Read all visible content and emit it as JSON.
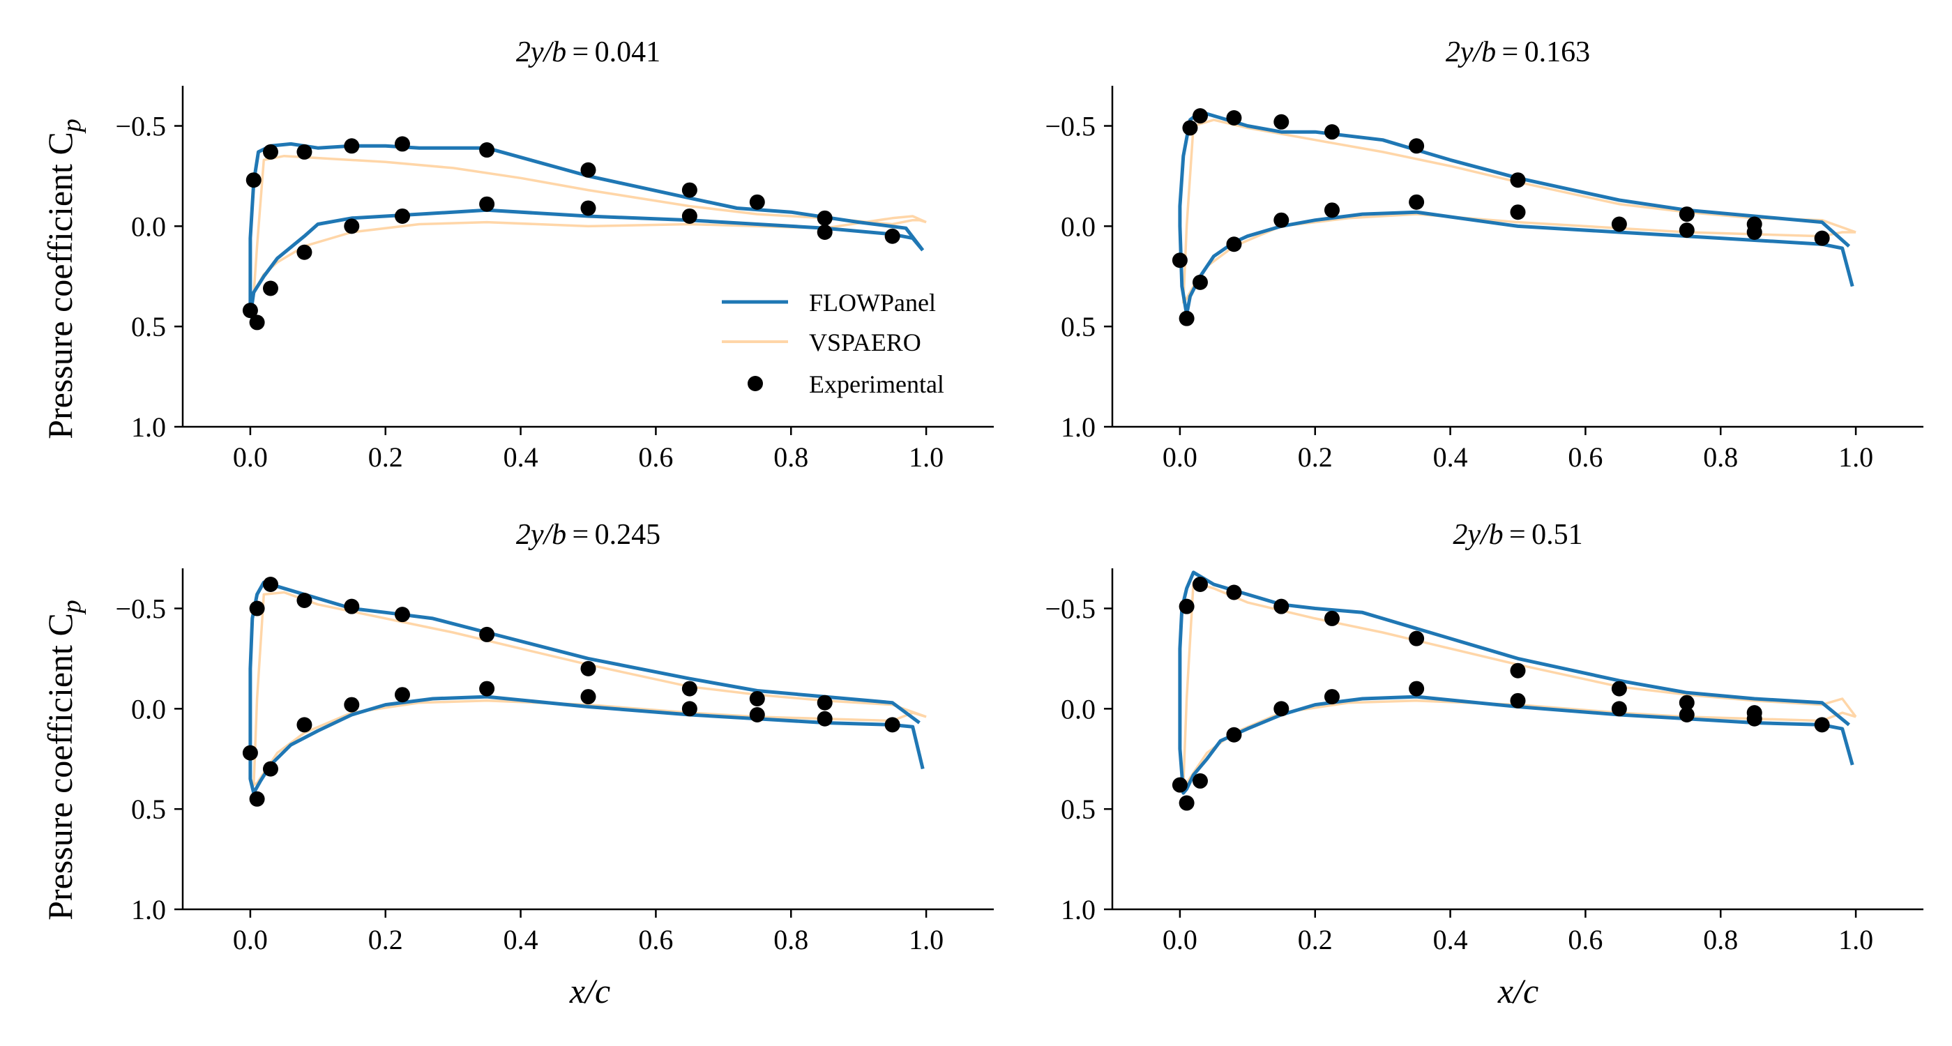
{
  "figure": {
    "ylabel": "Pressure coefficient C",
    "ylabel_sub": "p",
    "xlabel": "x/c"
  },
  "legend": {
    "items": [
      {
        "label": "FLOWPanel",
        "kind": "line",
        "color": "#1f77b4"
      },
      {
        "label": "VSPAERO",
        "kind": "line",
        "color": "#ffd6a8"
      },
      {
        "label": "Experimental",
        "kind": "marker",
        "color": "#000000"
      }
    ],
    "placement": "lower-right of top-left panel"
  },
  "colors": {
    "flowpanel": "#1f77b4",
    "vspaero": "#ffd6a8",
    "experimental": "#000000",
    "axes": "#000000"
  },
  "chart_data": [
    {
      "type": "line",
      "title_prefix": "2y/b",
      "title_value": "0.041",
      "xlabel": "",
      "ylabel": "Pressure coefficient Cp",
      "xlim": [
        -0.1,
        1.1
      ],
      "ylim": [
        1.0,
        -0.7
      ],
      "y_inverted": true,
      "xticks": [
        "0.0",
        "0.2",
        "0.4",
        "0.6",
        "0.8",
        "1.0"
      ],
      "yticks": [
        "−0.5",
        "0.0",
        "0.5",
        "1.0"
      ],
      "series": [
        {
          "name": "FLOWPanel",
          "x": [
            0.995,
            0.98,
            0.95,
            0.85,
            0.75,
            0.65,
            0.5,
            0.35,
            0.25,
            0.15,
            0.1,
            0.08,
            0.04,
            0.02,
            0.005,
            0.0,
            0.0,
            0.005,
            0.012,
            0.03,
            0.06,
            0.1,
            0.15,
            0.2,
            0.25,
            0.35,
            0.5,
            0.65,
            0.72,
            0.8,
            0.9,
            0.97,
            0.995
          ],
          "y": [
            0.12,
            0.06,
            0.04,
            0.01,
            -0.01,
            -0.03,
            -0.05,
            -0.08,
            -0.06,
            -0.04,
            -0.01,
            0.05,
            0.16,
            0.25,
            0.33,
            0.45,
            0.06,
            -0.22,
            -0.37,
            -0.4,
            -0.41,
            -0.39,
            -0.4,
            -0.4,
            -0.39,
            -0.39,
            -0.25,
            -0.14,
            -0.09,
            -0.07,
            -0.02,
            0.01,
            0.12
          ]
        },
        {
          "name": "VSPAERO",
          "x": [
            1.0,
            0.98,
            0.95,
            0.85,
            0.75,
            0.65,
            0.5,
            0.35,
            0.25,
            0.15,
            0.08,
            0.04,
            0.02,
            0.01,
            0.005,
            0.01,
            0.02,
            0.05,
            0.1,
            0.2,
            0.3,
            0.4,
            0.5,
            0.65,
            0.75,
            0.85,
            0.95,
            0.98,
            0.99,
            1.0
          ],
          "y": [
            -0.02,
            -0.05,
            -0.04,
            0.01,
            0.0,
            -0.01,
            0.0,
            -0.02,
            -0.01,
            0.03,
            0.1,
            0.18,
            0.24,
            0.3,
            0.34,
            0.1,
            -0.33,
            -0.35,
            -0.34,
            -0.32,
            -0.29,
            -0.24,
            -0.18,
            -0.1,
            -0.06,
            -0.04,
            -0.01,
            -0.03,
            -0.03,
            -0.02
          ]
        },
        {
          "name": "Experimental",
          "x": [
            0.0,
            0.01,
            0.03,
            0.08,
            0.15,
            0.225,
            0.35,
            0.5,
            0.65,
            0.75,
            0.85,
            0.95,
            0.005,
            0.03,
            0.08,
            0.15,
            0.225,
            0.35,
            0.5,
            0.65,
            0.85
          ],
          "y": [
            0.42,
            0.48,
            0.31,
            0.13,
            0.0,
            -0.05,
            -0.11,
            -0.09,
            -0.05,
            -0.12,
            0.03,
            0.05,
            -0.23,
            -0.37,
            -0.37,
            -0.4,
            -0.41,
            -0.38,
            -0.28,
            -0.18,
            -0.04
          ]
        }
      ]
    },
    {
      "type": "line",
      "title_prefix": "2y/b",
      "title_value": "0.163",
      "xlabel": "",
      "ylabel": "",
      "xlim": [
        -0.1,
        1.1
      ],
      "ylim": [
        1.0,
        -0.7
      ],
      "y_inverted": true,
      "xticks": [
        "0.0",
        "0.2",
        "0.4",
        "0.6",
        "0.8",
        "1.0"
      ],
      "yticks": [
        "−0.5",
        "0.0",
        "0.5",
        "1.0"
      ],
      "series": [
        {
          "name": "FLOWPanel",
          "x": [
            0.995,
            0.98,
            0.95,
            0.85,
            0.75,
            0.65,
            0.5,
            0.35,
            0.27,
            0.2,
            0.15,
            0.1,
            0.08,
            0.05,
            0.03,
            0.015,
            0.01,
            0.003,
            0.0,
            0.0,
            0.005,
            0.015,
            0.03,
            0.06,
            0.1,
            0.15,
            0.2,
            0.3,
            0.4,
            0.5,
            0.65,
            0.75,
            0.85,
            0.95,
            0.99
          ],
          "y": [
            0.3,
            0.11,
            0.09,
            0.07,
            0.05,
            0.03,
            0.0,
            -0.07,
            -0.06,
            -0.03,
            0.0,
            0.05,
            0.08,
            0.15,
            0.25,
            0.35,
            0.44,
            0.3,
            0.0,
            -0.1,
            -0.35,
            -0.53,
            -0.57,
            -0.54,
            -0.5,
            -0.47,
            -0.47,
            -0.43,
            -0.33,
            -0.24,
            -0.13,
            -0.08,
            -0.05,
            -0.02,
            0.1
          ]
        },
        {
          "name": "VSPAERO",
          "x": [
            1.0,
            0.98,
            0.95,
            0.85,
            0.75,
            0.65,
            0.5,
            0.35,
            0.25,
            0.15,
            0.08,
            0.04,
            0.02,
            0.01,
            0.005,
            0.01,
            0.02,
            0.05,
            0.1,
            0.2,
            0.3,
            0.4,
            0.5,
            0.65,
            0.75,
            0.85,
            0.95,
            1.0
          ],
          "y": [
            0.03,
            0.03,
            0.05,
            0.04,
            0.03,
            0.01,
            -0.02,
            -0.06,
            -0.04,
            0.0,
            0.1,
            0.2,
            0.3,
            0.36,
            0.38,
            0.0,
            -0.5,
            -0.53,
            -0.49,
            -0.43,
            -0.37,
            -0.3,
            -0.22,
            -0.11,
            -0.07,
            -0.04,
            -0.03,
            0.03
          ]
        },
        {
          "name": "Experimental",
          "x": [
            0.0,
            0.01,
            0.03,
            0.08,
            0.15,
            0.225,
            0.35,
            0.5,
            0.65,
            0.75,
            0.85,
            0.95,
            0.015,
            0.03,
            0.08,
            0.15,
            0.225,
            0.35,
            0.5,
            0.75,
            0.85
          ],
          "y": [
            0.17,
            0.46,
            0.28,
            0.09,
            -0.03,
            -0.08,
            -0.12,
            -0.07,
            -0.01,
            0.02,
            0.03,
            0.06,
            -0.49,
            -0.55,
            -0.54,
            -0.52,
            -0.47,
            -0.4,
            -0.23,
            -0.06,
            -0.01
          ]
        }
      ]
    },
    {
      "type": "line",
      "title_prefix": "2y/b",
      "title_value": "0.245",
      "xlabel": "x/c",
      "ylabel": "Pressure coefficient Cp",
      "xlim": [
        -0.1,
        1.1
      ],
      "ylim": [
        1.0,
        -0.7
      ],
      "y_inverted": true,
      "xticks": [
        "0.0",
        "0.2",
        "0.4",
        "0.6",
        "0.8",
        "1.0"
      ],
      "yticks": [
        "−0.5",
        "0.0",
        "0.5",
        "1.0"
      ],
      "series": [
        {
          "name": "FLOWPanel",
          "x": [
            0.995,
            0.98,
            0.95,
            0.85,
            0.75,
            0.65,
            0.5,
            0.35,
            0.27,
            0.2,
            0.15,
            0.1,
            0.06,
            0.03,
            0.015,
            0.005,
            0.0,
            0.0,
            0.003,
            0.01,
            0.02,
            0.05,
            0.1,
            0.15,
            0.2,
            0.27,
            0.35,
            0.5,
            0.65,
            0.75,
            0.85,
            0.95,
            0.99
          ],
          "y": [
            0.3,
            0.09,
            0.08,
            0.07,
            0.05,
            0.03,
            -0.01,
            -0.06,
            -0.05,
            -0.02,
            0.03,
            0.11,
            0.18,
            0.28,
            0.36,
            0.42,
            0.35,
            -0.2,
            -0.45,
            -0.57,
            -0.63,
            -0.6,
            -0.55,
            -0.5,
            -0.48,
            -0.45,
            -0.38,
            -0.25,
            -0.15,
            -0.09,
            -0.06,
            -0.03,
            0.07
          ]
        },
        {
          "name": "VSPAERO",
          "x": [
            1.0,
            0.98,
            0.95,
            0.85,
            0.75,
            0.65,
            0.5,
            0.35,
            0.25,
            0.15,
            0.08,
            0.04,
            0.02,
            0.01,
            0.005,
            0.01,
            0.02,
            0.05,
            0.1,
            0.2,
            0.3,
            0.4,
            0.5,
            0.65,
            0.75,
            0.85,
            0.95,
            1.0
          ],
          "y": [
            0.04,
            0.02,
            0.06,
            0.05,
            0.04,
            0.02,
            -0.02,
            -0.04,
            -0.03,
            0.02,
            0.12,
            0.22,
            0.32,
            0.37,
            0.38,
            -0.05,
            -0.57,
            -0.58,
            -0.52,
            -0.45,
            -0.38,
            -0.3,
            -0.22,
            -0.11,
            -0.07,
            -0.04,
            -0.02,
            0.04
          ]
        },
        {
          "name": "Experimental",
          "x": [
            0.0,
            0.01,
            0.03,
            0.08,
            0.15,
            0.225,
            0.35,
            0.5,
            0.65,
            0.75,
            0.85,
            0.95,
            0.01,
            0.03,
            0.08,
            0.15,
            0.225,
            0.35,
            0.5,
            0.65,
            0.75,
            0.85
          ],
          "y": [
            0.22,
            0.45,
            0.3,
            0.08,
            -0.02,
            -0.07,
            -0.1,
            -0.06,
            0.0,
            0.03,
            0.05,
            0.08,
            -0.5,
            -0.62,
            -0.54,
            -0.51,
            -0.47,
            -0.37,
            -0.2,
            -0.1,
            -0.05,
            -0.03
          ]
        }
      ]
    },
    {
      "type": "line",
      "title_prefix": "2y/b",
      "title_value": "0.51",
      "xlabel": "x/c",
      "ylabel": "",
      "xlim": [
        -0.1,
        1.1
      ],
      "ylim": [
        1.0,
        -0.7
      ],
      "y_inverted": true,
      "xticks": [
        "0.0",
        "0.2",
        "0.4",
        "0.6",
        "0.8",
        "1.0"
      ],
      "yticks": [
        "−0.5",
        "0.0",
        "0.5",
        "1.0"
      ],
      "series": [
        {
          "name": "FLOWPanel",
          "x": [
            0.995,
            0.98,
            0.95,
            0.85,
            0.75,
            0.65,
            0.5,
            0.35,
            0.27,
            0.2,
            0.15,
            0.1,
            0.06,
            0.04,
            0.02,
            0.01,
            0.005,
            0.0,
            0.0,
            0.003,
            0.01,
            0.02,
            0.05,
            0.1,
            0.15,
            0.2,
            0.27,
            0.35,
            0.5,
            0.65,
            0.75,
            0.85,
            0.95,
            0.99
          ],
          "y": [
            0.28,
            0.1,
            0.08,
            0.07,
            0.05,
            0.03,
            -0.01,
            -0.06,
            -0.05,
            -0.02,
            0.03,
            0.1,
            0.16,
            0.25,
            0.33,
            0.4,
            0.42,
            0.2,
            -0.3,
            -0.5,
            -0.6,
            -0.68,
            -0.62,
            -0.57,
            -0.52,
            -0.5,
            -0.48,
            -0.4,
            -0.25,
            -0.14,
            -0.08,
            -0.05,
            -0.03,
            0.08
          ]
        },
        {
          "name": "VSPAERO",
          "x": [
            1.0,
            0.98,
            0.95,
            0.85,
            0.75,
            0.65,
            0.5,
            0.35,
            0.25,
            0.15,
            0.08,
            0.04,
            0.02,
            0.01,
            0.005,
            0.01,
            0.02,
            0.05,
            0.1,
            0.2,
            0.3,
            0.4,
            0.5,
            0.65,
            0.75,
            0.85,
            0.95,
            0.98,
            1.0
          ],
          "y": [
            0.04,
            0.02,
            0.06,
            0.05,
            0.04,
            0.02,
            -0.02,
            -0.04,
            -0.03,
            0.02,
            0.12,
            0.22,
            0.32,
            0.37,
            0.38,
            -0.05,
            -0.63,
            -0.6,
            -0.53,
            -0.45,
            -0.38,
            -0.3,
            -0.22,
            -0.11,
            -0.07,
            -0.04,
            -0.02,
            -0.05,
            0.04
          ]
        },
        {
          "name": "Experimental",
          "x": [
            0.0,
            0.01,
            0.03,
            0.08,
            0.15,
            0.225,
            0.35,
            0.5,
            0.65,
            0.75,
            0.85,
            0.95,
            0.01,
            0.03,
            0.08,
            0.15,
            0.225,
            0.35,
            0.5,
            0.65,
            0.75,
            0.85
          ],
          "y": [
            0.38,
            0.47,
            0.36,
            0.13,
            0.0,
            -0.06,
            -0.1,
            -0.04,
            0.0,
            0.03,
            0.05,
            0.08,
            -0.51,
            -0.62,
            -0.58,
            -0.51,
            -0.45,
            -0.35,
            -0.19,
            -0.1,
            -0.03,
            0.02
          ]
        }
      ]
    }
  ]
}
